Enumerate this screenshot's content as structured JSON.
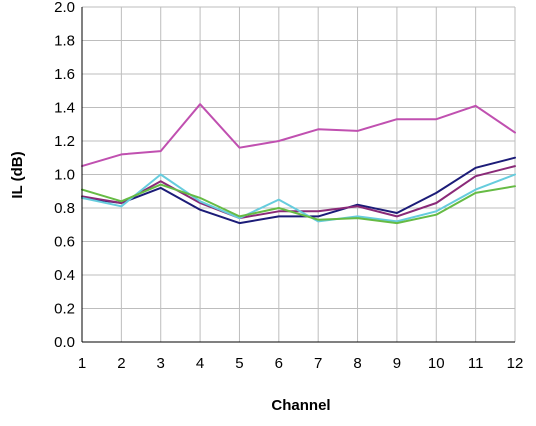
{
  "chart_data": {
    "type": "line",
    "title": "",
    "xlabel": "Channel",
    "ylabel": "IL  (dB)",
    "x": [
      1,
      2,
      3,
      4,
      5,
      6,
      7,
      8,
      9,
      10,
      11,
      12
    ],
    "xlim": [
      1,
      12
    ],
    "ylim": [
      0.0,
      2.0
    ],
    "yticks": [
      "0.0",
      "0.2",
      "0.4",
      "0.6",
      "0.8",
      "1.0",
      "1.2",
      "1.4",
      "1.6",
      "1.8",
      "2.0"
    ],
    "xticks": [
      "1",
      "2",
      "3",
      "4",
      "5",
      "6",
      "7",
      "8",
      "9",
      "10",
      "11",
      "12"
    ],
    "grid": true,
    "legend": "none",
    "series": [
      {
        "color": "#c050b0",
        "values": [
          1.05,
          1.12,
          1.14,
          1.42,
          1.16,
          1.2,
          1.27,
          1.26,
          1.33,
          1.33,
          1.41,
          1.25
        ]
      },
      {
        "color": "#1c1c78",
        "values": [
          0.86,
          0.83,
          0.92,
          0.79,
          0.71,
          0.75,
          0.75,
          0.82,
          0.77,
          0.89,
          1.04,
          1.1
        ]
      },
      {
        "color": "#8a2a78",
        "values": [
          0.87,
          0.83,
          0.96,
          0.83,
          0.74,
          0.78,
          0.78,
          0.81,
          0.75,
          0.83,
          0.99,
          1.05
        ]
      },
      {
        "color": "#66ccdd",
        "values": [
          0.86,
          0.81,
          1.0,
          0.84,
          0.74,
          0.85,
          0.72,
          0.75,
          0.72,
          0.78,
          0.91,
          1.0
        ]
      },
      {
        "color": "#66bb44",
        "values": [
          0.91,
          0.84,
          0.94,
          0.86,
          0.75,
          0.8,
          0.73,
          0.74,
          0.71,
          0.76,
          0.89,
          0.93
        ]
      }
    ]
  }
}
